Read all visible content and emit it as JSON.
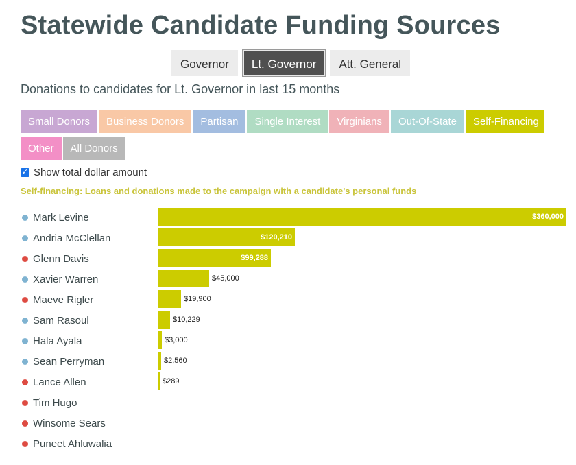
{
  "title": "Statewide Candidate Funding Sources",
  "office_tabs": [
    {
      "label": "Governor",
      "active": false
    },
    {
      "label": "Lt. Governor",
      "active": true
    },
    {
      "label": "Att. General",
      "active": false
    }
  ],
  "subtitle": "Donations to candidates for Lt. Governor in last 15 months",
  "filters": [
    {
      "label": "Small Donors",
      "color": "#c8a7d3",
      "name": "small-donors"
    },
    {
      "label": "Business Donors",
      "color": "#f9c8a6",
      "name": "business-donors"
    },
    {
      "label": "Partisan",
      "color": "#a3bde0",
      "name": "partisan"
    },
    {
      "label": "Single Interest",
      "color": "#b0dcc3",
      "name": "single-interest"
    },
    {
      "label": "Virginians",
      "color": "#f0b2b8",
      "name": "virginians"
    },
    {
      "label": "Out-Of-State",
      "color": "#a9d6d6",
      "name": "out-of-state"
    },
    {
      "label": "Self-Financing",
      "color": "#cccc00",
      "name": "self-financing"
    },
    {
      "label": "Other",
      "color": "#f38fc6",
      "name": "other"
    },
    {
      "label": "All Donors",
      "color": "#b8b8b8",
      "name": "all-donors"
    }
  ],
  "show_total_label": "Show total dollar amount",
  "show_total_checked": true,
  "category_note": "Self-financing: Loans and donations made to the campaign with a candidate's personal funds",
  "colors": {
    "bar": "#cccc00",
    "democrat": "#7fb3d1",
    "republican": "#de4b42"
  },
  "chart_data": {
    "type": "bar",
    "orientation": "horizontal",
    "xlim": [
      0,
      360000
    ],
    "series": [
      {
        "values": [
          360000,
          120210,
          99288,
          45000,
          19900,
          10229,
          3000,
          2560,
          289,
          null,
          null,
          null
        ],
        "labels": [
          "$360,000",
          "$120,210",
          "$99,288",
          "$45,000",
          "$19,900",
          "$10,229",
          "$3,000",
          "$2,560",
          "$289",
          "",
          "",
          ""
        ]
      }
    ],
    "categories": [
      "Mark Levine",
      "Andria McClellan",
      "Glenn Davis",
      "Xavier Warren",
      "Maeve Rigler",
      "Sam Rasoul",
      "Hala Ayala",
      "Sean Perryman",
      "Lance Allen",
      "Tim Hugo",
      "Winsome Sears",
      "Puneet Ahluwalia"
    ],
    "party_colors": [
      "#7fb3d1",
      "#7fb3d1",
      "#de4b42",
      "#7fb3d1",
      "#de4b42",
      "#7fb3d1",
      "#7fb3d1",
      "#7fb3d1",
      "#de4b42",
      "#de4b42",
      "#de4b42",
      "#de4b42"
    ]
  }
}
